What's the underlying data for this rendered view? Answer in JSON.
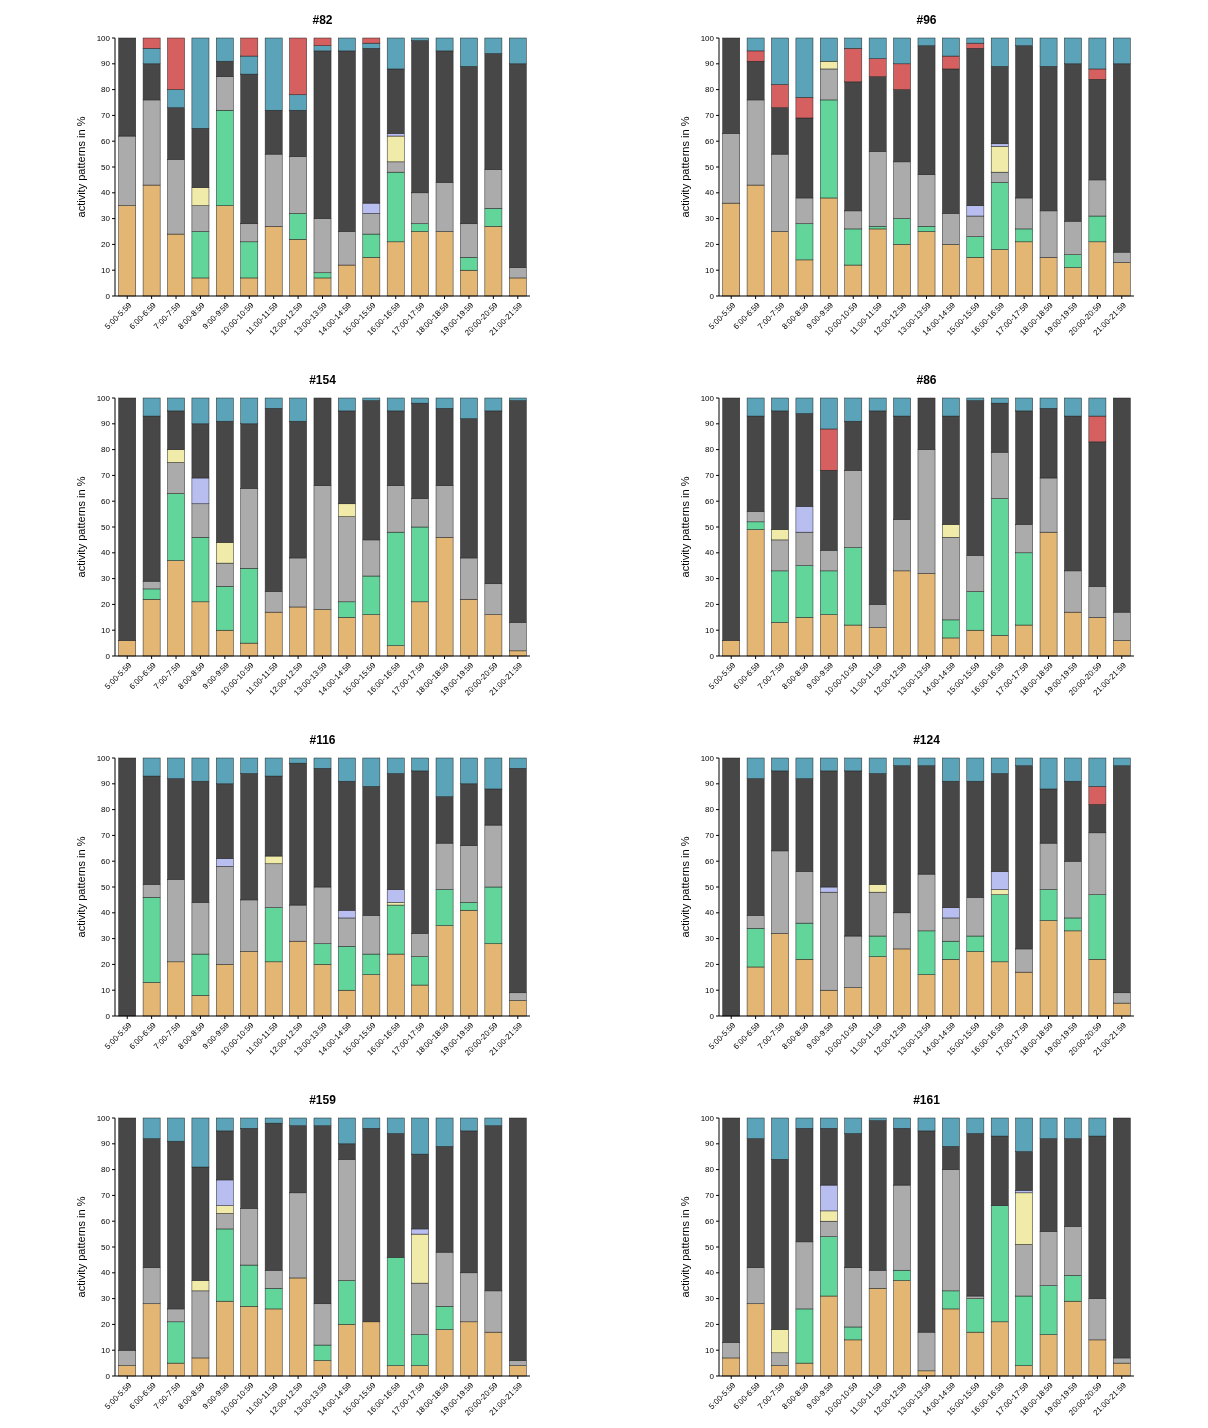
{
  "chart_data": [
    {
      "type": "bar",
      "stacked": true,
      "title": "#82",
      "ylabel": "activity patterns in %",
      "categories": [
        "5:00-5:59",
        "6:00-6:59",
        "7:00-7:59",
        "8:00-8:59",
        "9:00-9:59",
        "10:00-10:59",
        "11:00-11:59",
        "12:00-12:59",
        "13:00-13:59",
        "14:00-14:59",
        "15:00-15:59",
        "16:00-16:59",
        "17:00-17:59",
        "18:00-18:59",
        "19:00-19:59",
        "20:00-20:59",
        "21:00-21:59"
      ],
      "ylim": [
        0,
        100
      ],
      "yticks": [
        0,
        10,
        20,
        30,
        40,
        50,
        60,
        70,
        80,
        90,
        100
      ],
      "series": [
        {
          "color": "#e3b673",
          "values": [
            35,
            43,
            24,
            7,
            35,
            7,
            27,
            22,
            7,
            12,
            15,
            21,
            25,
            25,
            10,
            27,
            7
          ]
        },
        {
          "color": "#62d69a",
          "values": [
            0,
            0,
            0,
            18,
            37,
            14,
            0,
            10,
            2,
            0,
            9,
            27,
            3,
            0,
            5,
            7,
            0
          ]
        },
        {
          "color": "#ababab",
          "values": [
            27,
            33,
            29,
            10,
            13,
            7,
            28,
            22,
            21,
            13,
            8,
            4,
            12,
            19,
            13,
            15,
            4
          ]
        },
        {
          "color": "#f0eba8",
          "values": [
            0,
            0,
            0,
            7,
            0,
            0,
            0,
            0,
            0,
            0,
            0,
            10,
            0,
            0,
            0,
            0,
            0
          ]
        },
        {
          "color": "#b9bef0",
          "values": [
            0,
            0,
            0,
            0,
            0,
            0,
            0,
            0,
            0,
            0,
            4,
            1,
            0,
            0,
            0,
            0,
            0
          ]
        },
        {
          "color": "#474747",
          "values": [
            38,
            14,
            20,
            23,
            6,
            58,
            17,
            18,
            65,
            70,
            60,
            25,
            59,
            51,
            61,
            45,
            79
          ]
        },
        {
          "color": "#5ba3b8",
          "values": [
            0,
            6,
            7,
            35,
            9,
            7,
            28,
            6,
            2,
            5,
            2,
            12,
            1,
            5,
            11,
            6,
            10
          ]
        },
        {
          "color": "#d65f5f",
          "values": [
            0,
            4,
            20,
            0,
            0,
            7,
            0,
            22,
            3,
            0,
            2,
            0,
            0,
            0,
            0,
            0,
            0
          ]
        }
      ]
    },
    {
      "type": "bar",
      "stacked": true,
      "title": "#96",
      "ylabel": "activity patterns in %",
      "categories": [
        "5:00-5:59",
        "6:00-6:59",
        "7:00-7:59",
        "8:00-8:59",
        "9:00-9:59",
        "10:00-10:59",
        "11:00-11:59",
        "12:00-12:59",
        "13:00-13:59",
        "14:00-14:59",
        "15:00-15:59",
        "16:00-16:59",
        "17:00-17:59",
        "18:00-18:59",
        "19:00-19:59",
        "20:00-20:59",
        "21:00-21:59"
      ],
      "ylim": [
        0,
        100
      ],
      "yticks": [
        0,
        10,
        20,
        30,
        40,
        50,
        60,
        70,
        80,
        90,
        100
      ],
      "series": [
        {
          "color": "#e3b673",
          "values": [
            36,
            43,
            25,
            14,
            38,
            12,
            26,
            20,
            25,
            20,
            15,
            18,
            21,
            15,
            11,
            21,
            13
          ]
        },
        {
          "color": "#62d69a",
          "values": [
            0,
            0,
            0,
            14,
            38,
            14,
            1,
            10,
            2,
            0,
            8,
            26,
            5,
            0,
            5,
            10,
            0
          ]
        },
        {
          "color": "#ababab",
          "values": [
            27,
            33,
            30,
            10,
            12,
            7,
            29,
            22,
            20,
            12,
            8,
            4,
            12,
            18,
            13,
            14,
            4
          ]
        },
        {
          "color": "#f0eba8",
          "values": [
            0,
            0,
            0,
            0,
            3,
            0,
            0,
            0,
            0,
            0,
            0,
            10,
            0,
            0,
            0,
            0,
            0
          ]
        },
        {
          "color": "#b9bef0",
          "values": [
            0,
            0,
            0,
            0,
            0,
            0,
            0,
            0,
            0,
            0,
            4,
            1,
            0,
            0,
            0,
            0,
            0
          ]
        },
        {
          "color": "#474747",
          "values": [
            37,
            15,
            18,
            31,
            0,
            50,
            29,
            28,
            50,
            56,
            61,
            30,
            59,
            56,
            61,
            39,
            73
          ]
        },
        {
          "color": "#d65f5f",
          "values": [
            0,
            4,
            9,
            8,
            0,
            13,
            7,
            10,
            0,
            5,
            2,
            0,
            0,
            0,
            0,
            4,
            0
          ]
        },
        {
          "color": "#5ba3b8",
          "values": [
            0,
            5,
            18,
            23,
            9,
            4,
            8,
            10,
            3,
            7,
            2,
            11,
            3,
            11,
            10,
            12,
            10
          ]
        }
      ]
    },
    {
      "type": "bar",
      "stacked": true,
      "title": "#154",
      "ylabel": "activity patterns in %",
      "categories": [
        "5:00-5:59",
        "6:00-6:59",
        "7:00-7:59",
        "8:00-8:59",
        "9:00-9:59",
        "10:00-10:59",
        "11:00-11:59",
        "12:00-12:59",
        "13:00-13:59",
        "14:00-14:59",
        "15:00-15:59",
        "16:00-16:59",
        "17:00-17:59",
        "18:00-18:59",
        "19:00-19:59",
        "20:00-20:59",
        "21:00-21:59"
      ],
      "ylim": [
        0,
        100
      ],
      "yticks": [
        0,
        10,
        20,
        30,
        40,
        50,
        60,
        70,
        80,
        90,
        100
      ],
      "series": [
        {
          "color": "#e3b673",
          "values": [
            6,
            22,
            37,
            21,
            10,
            5,
            17,
            19,
            18,
            15,
            16,
            4,
            21,
            46,
            22,
            16,
            2
          ]
        },
        {
          "color": "#62d69a",
          "values": [
            0,
            4,
            26,
            25,
            17,
            29,
            0,
            0,
            0,
            6,
            15,
            44,
            29,
            0,
            0,
            0,
            0
          ]
        },
        {
          "color": "#ababab",
          "values": [
            0,
            3,
            12,
            13,
            9,
            31,
            8,
            19,
            48,
            33,
            14,
            18,
            11,
            20,
            16,
            12,
            11
          ]
        },
        {
          "color": "#f0eba8",
          "values": [
            0,
            0,
            5,
            0,
            8,
            0,
            0,
            0,
            0,
            5,
            0,
            0,
            0,
            0,
            0,
            0,
            0
          ]
        },
        {
          "color": "#b9bef0",
          "values": [
            0,
            0,
            0,
            10,
            0,
            0,
            0,
            0,
            0,
            0,
            0,
            0,
            0,
            0,
            0,
            0,
            0
          ]
        },
        {
          "color": "#474747",
          "values": [
            94,
            64,
            15,
            21,
            47,
            25,
            71,
            53,
            34,
            36,
            54,
            29,
            37,
            30,
            54,
            67,
            86
          ]
        },
        {
          "color": "#5ba3b8",
          "values": [
            0,
            7,
            5,
            10,
            9,
            10,
            4,
            9,
            0,
            5,
            1,
            5,
            2,
            4,
            8,
            5,
            1
          ]
        }
      ]
    },
    {
      "type": "bar",
      "stacked": true,
      "title": "#86",
      "ylabel": "activity patterns in %",
      "categories": [
        "5:00-5:59",
        "6:00-6:59",
        "7:00-7:59",
        "8:00-8:59",
        "9:00-9:59",
        "10:00-10:59",
        "11:00-11:59",
        "12:00-12:59",
        "13:00-13:59",
        "14:00-14:59",
        "15:00-15:59",
        "16:00-16:59",
        "17:00-17:59",
        "18:00-18:59",
        "19:00-19:59",
        "20:00-20:59",
        "21:00-21:59"
      ],
      "ylim": [
        0,
        100
      ],
      "yticks": [
        0,
        10,
        20,
        30,
        40,
        50,
        60,
        70,
        80,
        90,
        100
      ],
      "series": [
        {
          "color": "#e3b673",
          "values": [
            6,
            49,
            13,
            15,
            16,
            12,
            11,
            33,
            32,
            7,
            10,
            8,
            12,
            48,
            17,
            15,
            6
          ]
        },
        {
          "color": "#62d69a",
          "values": [
            0,
            3,
            20,
            20,
            17,
            30,
            0,
            0,
            0,
            7,
            15,
            53,
            28,
            0,
            0,
            0,
            0
          ]
        },
        {
          "color": "#ababab",
          "values": [
            0,
            4,
            12,
            13,
            8,
            30,
            9,
            20,
            48,
            32,
            14,
            18,
            11,
            21,
            16,
            12,
            11
          ]
        },
        {
          "color": "#f0eba8",
          "values": [
            0,
            0,
            4,
            0,
            0,
            0,
            0,
            0,
            0,
            5,
            0,
            0,
            0,
            0,
            0,
            0,
            0
          ]
        },
        {
          "color": "#b9bef0",
          "values": [
            0,
            0,
            0,
            10,
            0,
            0,
            0,
            0,
            0,
            0,
            0,
            0,
            0,
            0,
            0,
            0,
            0
          ]
        },
        {
          "color": "#474747",
          "values": [
            94,
            37,
            46,
            36,
            31,
            19,
            75,
            40,
            20,
            42,
            60,
            19,
            44,
            27,
            60,
            56,
            83
          ]
        },
        {
          "color": "#d65f5f",
          "values": [
            0,
            0,
            0,
            0,
            16,
            0,
            0,
            0,
            0,
            0,
            0,
            0,
            0,
            0,
            0,
            10,
            0
          ]
        },
        {
          "color": "#5ba3b8",
          "values": [
            0,
            7,
            5,
            6,
            12,
            9,
            5,
            7,
            0,
            7,
            1,
            2,
            5,
            4,
            7,
            7,
            0
          ]
        }
      ]
    },
    {
      "type": "bar",
      "stacked": true,
      "title": "#116",
      "ylabel": "activity patterns in %",
      "categories": [
        "5:00-5:59",
        "6:00-6:59",
        "7:00-7:59",
        "8:00-8:59",
        "9:00-9:59",
        "10:00-10:59",
        "11:00-11:59",
        "12:00-12:59",
        "13:00-13:59",
        "14:00-14:59",
        "15:00-15:59",
        "16:00-16:59",
        "17:00-17:59",
        "18:00-18:59",
        "19:00-19:59",
        "20:00-20:59",
        "21:00-21:59"
      ],
      "ylim": [
        0,
        100
      ],
      "yticks": [
        0,
        10,
        20,
        30,
        40,
        50,
        60,
        70,
        80,
        90,
        100
      ],
      "series": [
        {
          "color": "#e3b673",
          "values": [
            0,
            13,
            21,
            8,
            20,
            25,
            21,
            29,
            20,
            10,
            16,
            24,
            12,
            35,
            41,
            28,
            6
          ]
        },
        {
          "color": "#62d69a",
          "values": [
            0,
            33,
            0,
            16,
            0,
            0,
            21,
            0,
            8,
            17,
            8,
            19,
            11,
            14,
            3,
            22,
            0
          ]
        },
        {
          "color": "#ababab",
          "values": [
            0,
            5,
            32,
            20,
            38,
            20,
            17,
            14,
            22,
            11,
            15,
            0,
            9,
            18,
            22,
            24,
            3
          ]
        },
        {
          "color": "#f0eba8",
          "values": [
            0,
            0,
            0,
            0,
            0,
            0,
            3,
            0,
            0,
            0,
            0,
            1,
            0,
            0,
            0,
            0,
            0
          ]
        },
        {
          "color": "#b9bef0",
          "values": [
            0,
            0,
            0,
            0,
            3,
            0,
            0,
            0,
            0,
            3,
            0,
            5,
            0,
            0,
            0,
            0,
            0
          ]
        },
        {
          "color": "#474747",
          "values": [
            100,
            42,
            39,
            47,
            29,
            49,
            31,
            55,
            46,
            50,
            50,
            45,
            63,
            18,
            24,
            14,
            87
          ]
        },
        {
          "color": "#5ba3b8",
          "values": [
            0,
            7,
            8,
            9,
            10,
            6,
            7,
            2,
            4,
            9,
            11,
            6,
            5,
            15,
            10,
            12,
            4
          ]
        }
      ]
    },
    {
      "type": "bar",
      "stacked": true,
      "title": "#124",
      "ylabel": "activity patterns in %",
      "categories": [
        "5:00-5:59",
        "6:00-6:59",
        "7:00-7:59",
        "8:00-8:59",
        "9:00-9:59",
        "10:00-10:59",
        "11:00-11:59",
        "12:00-12:59",
        "13:00-13:59",
        "14:00-14:59",
        "15:00-15:59",
        "16:00-16:59",
        "17:00-17:59",
        "18:00-18:59",
        "19:00-19:59",
        "20:00-20:59",
        "21:00-21:59"
      ],
      "ylim": [
        0,
        100
      ],
      "yticks": [
        0,
        10,
        20,
        30,
        40,
        50,
        60,
        70,
        80,
        90,
        100
      ],
      "series": [
        {
          "color": "#e3b673",
          "values": [
            0,
            19,
            32,
            22,
            10,
            11,
            23,
            26,
            16,
            22,
            25,
            21,
            17,
            37,
            33,
            22,
            5
          ]
        },
        {
          "color": "#62d69a",
          "values": [
            0,
            15,
            0,
            14,
            0,
            0,
            8,
            0,
            17,
            7,
            6,
            26,
            0,
            12,
            5,
            25,
            0
          ]
        },
        {
          "color": "#ababab",
          "values": [
            0,
            5,
            32,
            20,
            38,
            20,
            17,
            14,
            22,
            9,
            15,
            0,
            9,
            18,
            22,
            24,
            4
          ]
        },
        {
          "color": "#f0eba8",
          "values": [
            0,
            0,
            0,
            0,
            0,
            0,
            3,
            0,
            0,
            0,
            0,
            2,
            0,
            0,
            0,
            0,
            0
          ]
        },
        {
          "color": "#b9bef0",
          "values": [
            0,
            0,
            0,
            0,
            2,
            0,
            0,
            0,
            0,
            4,
            0,
            7,
            0,
            0,
            0,
            0,
            0
          ]
        },
        {
          "color": "#474747",
          "values": [
            100,
            53,
            31,
            36,
            45,
            64,
            43,
            57,
            42,
            49,
            45,
            38,
            71,
            21,
            31,
            11,
            88
          ]
        },
        {
          "color": "#d65f5f",
          "values": [
            0,
            0,
            0,
            0,
            0,
            0,
            0,
            0,
            0,
            0,
            0,
            0,
            0,
            0,
            0,
            7,
            0
          ]
        },
        {
          "color": "#5ba3b8",
          "values": [
            0,
            8,
            5,
            8,
            5,
            5,
            6,
            3,
            3,
            9,
            9,
            6,
            3,
            12,
            9,
            11,
            3
          ]
        }
      ]
    },
    {
      "type": "bar",
      "stacked": true,
      "title": "#159",
      "ylabel": "activity patterns in %",
      "categories": [
        "5:00-5:59",
        "6:00-6:59",
        "7:00-7:59",
        "8:00-8:59",
        "9:00-9:59",
        "10:00-10:59",
        "11:00-11:59",
        "12:00-12:59",
        "13:00-13:59",
        "14:00-14:59",
        "15:00-15:59",
        "16:00-16:59",
        "17:00-17:59",
        "18:00-18:59",
        "19:00-19:59",
        "20:00-20:59",
        "21:00-21:59"
      ],
      "ylim": [
        0,
        100
      ],
      "yticks": [
        0,
        10,
        20,
        30,
        40,
        50,
        60,
        70,
        80,
        90,
        100
      ],
      "series": [
        {
          "color": "#e3b673",
          "values": [
            4,
            28,
            5,
            7,
            29,
            27,
            26,
            38,
            6,
            20,
            21,
            4,
            4,
            18,
            21,
            17,
            4
          ]
        },
        {
          "color": "#62d69a",
          "values": [
            0,
            0,
            16,
            0,
            28,
            16,
            8,
            0,
            6,
            17,
            0,
            42,
            12,
            9,
            0,
            0,
            0
          ]
        },
        {
          "color": "#ababab",
          "values": [
            6,
            14,
            5,
            26,
            6,
            22,
            7,
            33,
            16,
            47,
            0,
            0,
            20,
            21,
            19,
            16,
            2
          ]
        },
        {
          "color": "#f0eba8",
          "values": [
            0,
            0,
            0,
            4,
            3,
            0,
            0,
            0,
            0,
            0,
            0,
            0,
            19,
            0,
            0,
            0,
            0
          ]
        },
        {
          "color": "#b9bef0",
          "values": [
            0,
            0,
            0,
            0,
            10,
            0,
            0,
            0,
            0,
            0,
            0,
            0,
            2,
            0,
            0,
            0,
            0
          ]
        },
        {
          "color": "#474747",
          "values": [
            90,
            50,
            65,
            44,
            19,
            31,
            57,
            26,
            69,
            6,
            75,
            48,
            29,
            41,
            55,
            64,
            94
          ]
        },
        {
          "color": "#5ba3b8",
          "values": [
            0,
            8,
            9,
            19,
            5,
            4,
            2,
            3,
            3,
            10,
            4,
            6,
            14,
            11,
            5,
            3,
            0
          ]
        }
      ]
    },
    {
      "type": "bar",
      "stacked": true,
      "title": "#161",
      "ylabel": "activity patterns in %",
      "categories": [
        "5:00-5:59",
        "6:00-6:59",
        "7:00-7:59",
        "8:00-8:59",
        "9:00-9:59",
        "10:00-10:59",
        "11:00-11:59",
        "12:00-12:59",
        "13:00-13:59",
        "14:00-14:59",
        "15:00-15:59",
        "16:00-16:59",
        "17:00-17:59",
        "18:00-18:59",
        "19:00-19:59",
        "20:00-20:59",
        "21:00-21:59"
      ],
      "ylim": [
        0,
        100
      ],
      "yticks": [
        0,
        10,
        20,
        30,
        40,
        50,
        60,
        70,
        80,
        90,
        100
      ],
      "series": [
        {
          "color": "#e3b673",
          "values": [
            7,
            28,
            4,
            5,
            31,
            14,
            34,
            37,
            2,
            26,
            17,
            21,
            4,
            16,
            29,
            14,
            5
          ]
        },
        {
          "color": "#62d69a",
          "values": [
            0,
            0,
            0,
            21,
            23,
            5,
            0,
            4,
            0,
            7,
            13,
            45,
            27,
            19,
            10,
            0,
            0
          ]
        },
        {
          "color": "#ababab",
          "values": [
            6,
            14,
            5,
            26,
            6,
            23,
            7,
            33,
            15,
            47,
            1,
            0,
            20,
            21,
            19,
            16,
            2
          ]
        },
        {
          "color": "#f0eba8",
          "values": [
            0,
            0,
            9,
            0,
            4,
            0,
            0,
            0,
            0,
            0,
            0,
            0,
            20,
            0,
            0,
            0,
            0
          ]
        },
        {
          "color": "#b9bef0",
          "values": [
            0,
            0,
            0,
            0,
            10,
            0,
            0,
            0,
            0,
            0,
            0,
            0,
            1,
            0,
            0,
            0,
            0
          ]
        },
        {
          "color": "#474747",
          "values": [
            87,
            50,
            66,
            44,
            22,
            52,
            58,
            22,
            78,
            9,
            63,
            27,
            15,
            36,
            34,
            63,
            93
          ]
        },
        {
          "color": "#5ba3b8",
          "values": [
            0,
            8,
            16,
            4,
            4,
            6,
            1,
            4,
            5,
            11,
            6,
            7,
            13,
            8,
            8,
            7,
            0
          ]
        }
      ]
    }
  ]
}
